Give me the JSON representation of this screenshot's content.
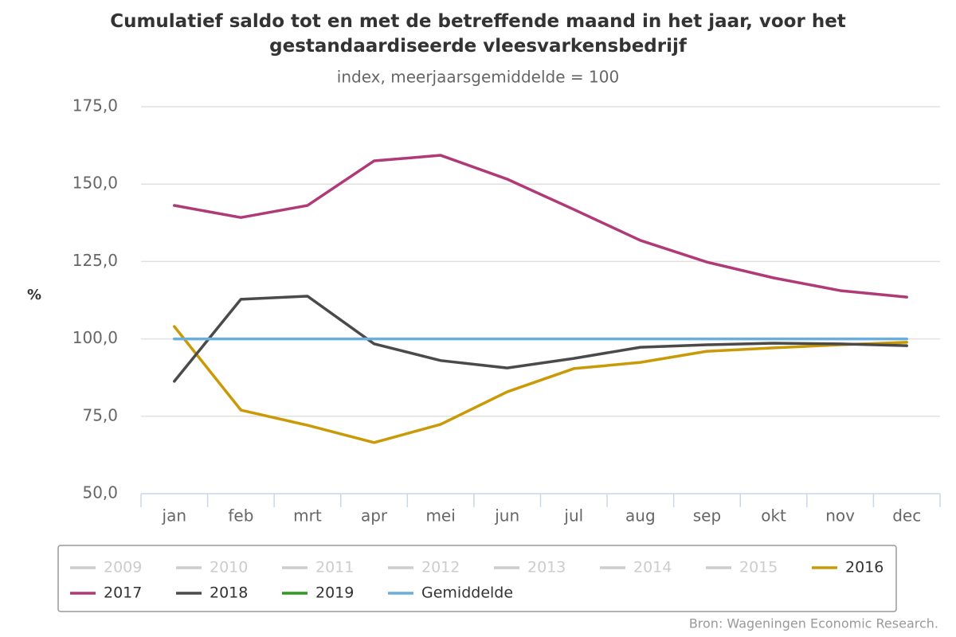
{
  "chart_data": {
    "type": "line",
    "title": "Cumulatief saldo tot en met de betreffende maand in het jaar, voor het gestandaardiseerde vleesvarkensbedrijf",
    "subtitle": "index, meerjaarsgemiddelde = 100",
    "y_label": "%",
    "source": "Bron: Wageningen Economic Research.",
    "categories": [
      "jan",
      "feb",
      "mrt",
      "apr",
      "mei",
      "jun",
      "jul",
      "aug",
      "sep",
      "okt",
      "nov",
      "dec"
    ],
    "ylim": [
      50,
      175
    ],
    "yticks": [
      {
        "value": 50,
        "label": "50,0"
      },
      {
        "value": 75,
        "label": "75,0"
      },
      {
        "value": 100,
        "label": "100,0"
      },
      {
        "value": 125,
        "label": "125,0"
      },
      {
        "value": 150,
        "label": "150,0"
      },
      {
        "value": 175,
        "label": "175,0"
      }
    ],
    "grid": true,
    "legend": "bottom",
    "series": [
      {
        "name": "2009",
        "color": "#cccccc",
        "visible": false,
        "values": [
          null,
          null,
          null,
          null,
          null,
          null,
          null,
          null,
          null,
          null,
          null,
          null
        ]
      },
      {
        "name": "2010",
        "color": "#cccccc",
        "visible": false,
        "values": [
          null,
          null,
          null,
          null,
          null,
          null,
          null,
          null,
          null,
          null,
          null,
          null
        ]
      },
      {
        "name": "2011",
        "color": "#cccccc",
        "visible": false,
        "values": [
          null,
          null,
          null,
          null,
          null,
          null,
          null,
          null,
          null,
          null,
          null,
          null
        ]
      },
      {
        "name": "2012",
        "color": "#cccccc",
        "visible": false,
        "values": [
          null,
          null,
          null,
          null,
          null,
          null,
          null,
          null,
          null,
          null,
          null,
          null
        ]
      },
      {
        "name": "2013",
        "color": "#cccccc",
        "visible": false,
        "values": [
          null,
          null,
          null,
          null,
          null,
          null,
          null,
          null,
          null,
          null,
          null,
          null
        ]
      },
      {
        "name": "2014",
        "color": "#cccccc",
        "visible": false,
        "values": [
          null,
          null,
          null,
          null,
          null,
          null,
          null,
          null,
          null,
          null,
          null,
          null
        ]
      },
      {
        "name": "2015",
        "color": "#cccccc",
        "visible": false,
        "values": [
          null,
          null,
          null,
          null,
          null,
          null,
          null,
          null,
          null,
          null,
          null,
          null
        ]
      },
      {
        "name": "2016",
        "color": "#c99a06",
        "visible": true,
        "values": [
          104.0,
          77.0,
          72.1,
          66.5,
          72.4,
          82.9,
          90.4,
          92.4,
          96.0,
          97.1,
          98.1,
          98.9
        ]
      },
      {
        "name": "2017",
        "color": "#b03a78",
        "visible": true,
        "values": [
          143.1,
          139.2,
          143.1,
          157.5,
          159.3,
          151.6,
          141.8,
          131.8,
          124.8,
          119.7,
          115.6,
          113.5
        ]
      },
      {
        "name": "2018",
        "color": "#4a4a4a",
        "visible": true,
        "values": [
          86.3,
          112.8,
          113.8,
          98.4,
          93.0,
          90.6,
          93.7,
          97.3,
          98.1,
          98.6,
          98.4,
          97.8
        ]
      },
      {
        "name": "2019",
        "color": "#2e9a1e",
        "visible": true,
        "values": [
          null,
          null,
          null,
          null,
          null,
          null,
          null,
          null,
          null,
          null,
          null,
          null
        ]
      },
      {
        "name": "Gemiddelde",
        "color": "#6aaedc",
        "visible": true,
        "values": [
          100,
          100,
          100,
          100,
          100,
          100,
          100,
          100,
          100,
          100,
          100,
          100
        ]
      }
    ]
  }
}
